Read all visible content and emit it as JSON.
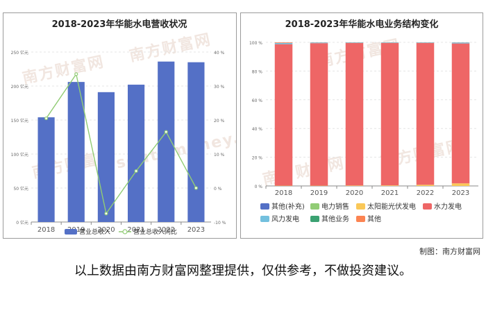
{
  "chart_data": [
    {
      "type": "bar",
      "title": "2018-2023年华能水电营收状况",
      "categories": [
        "2018",
        "2019",
        "2020",
        "2021",
        "2022",
        "2023"
      ],
      "y_left": {
        "ticks": [
          "0 亿元",
          "50 亿元",
          "100 亿元",
          "150 亿元",
          "200 亿元",
          "250 亿元"
        ],
        "ylim": [
          0,
          250
        ]
      },
      "y_right": {
        "ticks": [
          "-10 %",
          "0 %",
          "10 %",
          "20 %",
          "30 %",
          "40 %"
        ],
        "ylim": [
          -10,
          40
        ]
      },
      "series": [
        {
          "name": "营业总收入",
          "kind": "bar",
          "axis": "left",
          "values": [
            154,
            206,
            191,
            202,
            236,
            235
          ]
        },
        {
          "name": "营业总收入同比",
          "kind": "line",
          "axis": "right",
          "values": [
            20.5,
            33.5,
            -7.5,
            5,
            16.5,
            0
          ]
        }
      ],
      "colors": {
        "bar": "#5470c6",
        "line": "#91cc75"
      },
      "legend_position": "bottom"
    },
    {
      "type": "bar",
      "stacked": true,
      "title": "2018-2023年华能水电业务结构变化",
      "categories": [
        "2018",
        "2019",
        "2020",
        "2021",
        "2022",
        "2023"
      ],
      "y": {
        "ticks": [
          "0 %",
          "20 %",
          "40 %",
          "60 %",
          "80 %",
          "100 %"
        ],
        "ylim": [
          0,
          100
        ]
      },
      "series": [
        {
          "name": "其他(补充)",
          "color": "#5470c6",
          "values": [
            0,
            0,
            0,
            0,
            0,
            0
          ]
        },
        {
          "name": "电力销售",
          "color": "#91cc75",
          "values": [
            0,
            0,
            0,
            0,
            0,
            0
          ]
        },
        {
          "name": "太阳能光伏发电",
          "color": "#fac858",
          "values": [
            0.2,
            0.2,
            0.3,
            0.4,
            0.8,
            1.8
          ]
        },
        {
          "name": "水力发电",
          "color": "#ee6666",
          "values": [
            98.5,
            99.2,
            99.2,
            99.1,
            98.7,
            97.4
          ]
        },
        {
          "name": "风力发电",
          "color": "#73c0de",
          "values": [
            0.9,
            0.5,
            0.4,
            0.4,
            0.4,
            0.7
          ]
        },
        {
          "name": "其他业务",
          "color": "#3ba272",
          "values": [
            0,
            0,
            0,
            0,
            0,
            0
          ]
        },
        {
          "name": "其他",
          "color": "#fc8452",
          "values": [
            0.4,
            0.1,
            0.1,
            0.1,
            0.1,
            0.1
          ]
        }
      ],
      "legend_position": "bottom"
    }
  ],
  "watermark": {
    "text_cn": "南方财富网",
    "text_en": "southmoney.com"
  },
  "credit": "制图：南方财富网",
  "footnote": "以上数据由南方财富网整理提供，仅供参考，不做投资建议。"
}
